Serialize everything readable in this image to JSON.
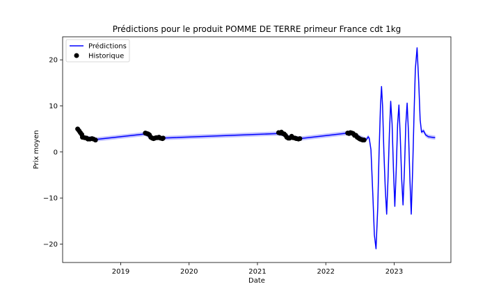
{
  "chart_data": {
    "type": "line",
    "title": "Prédictions pour le produit POMME DE TERRE primeur France cdt 1kg",
    "xlabel": "Date",
    "ylabel": "Prix moyen",
    "xlim": [
      2018.15,
      2023.83
    ],
    "ylim": [
      -24,
      25
    ],
    "x_ticks": [
      2019,
      2020,
      2021,
      2022,
      2023
    ],
    "x_tick_labels": [
      "2019",
      "2020",
      "2021",
      "2022",
      "2023"
    ],
    "y_ticks": [
      -20,
      -10,
      0,
      10,
      20
    ],
    "y_tick_labels": [
      "−20",
      "−10",
      "0",
      "10",
      "20"
    ],
    "grid": false,
    "legend": {
      "placement": "top-left",
      "entries": [
        {
          "label": "Prédictions",
          "kind": "line",
          "color": "#0000ff"
        },
        {
          "label": "Historique",
          "kind": "point",
          "color": "#000000"
        }
      ]
    },
    "colors": {
      "prediction": "#0000ff",
      "band": "#8f8fff",
      "history": "#000000"
    },
    "band_half_width": 0.45,
    "series": [
      {
        "name": "Prédictions",
        "points": [
          [
            2018.37,
            4.8
          ],
          [
            2018.4,
            4.6
          ],
          [
            2018.43,
            3.9
          ],
          [
            2018.46,
            3.2
          ],
          [
            2018.52,
            3.0
          ],
          [
            2018.58,
            2.9
          ],
          [
            2018.63,
            2.7
          ],
          [
            2019.36,
            3.9
          ],
          [
            2019.42,
            3.3
          ],
          [
            2019.48,
            3.0
          ],
          [
            2019.55,
            3.1
          ],
          [
            2019.6,
            3.0
          ],
          [
            2021.31,
            4.0
          ],
          [
            2021.38,
            3.8
          ],
          [
            2021.44,
            3.3
          ],
          [
            2021.5,
            3.1
          ],
          [
            2021.57,
            3.0
          ],
          [
            2021.62,
            2.9
          ],
          [
            2022.32,
            4.1
          ],
          [
            2022.38,
            4.0
          ],
          [
            2022.44,
            3.6
          ],
          [
            2022.5,
            3.2
          ],
          [
            2022.55,
            2.9
          ],
          [
            2022.58,
            2.7
          ],
          [
            2022.6,
            2.8
          ],
          [
            2022.62,
            3.3
          ],
          [
            2022.635,
            3.0
          ],
          [
            2022.66,
            0.5
          ],
          [
            2022.69,
            -10.0
          ],
          [
            2022.71,
            -18.0
          ],
          [
            2022.735,
            -21.0
          ],
          [
            2022.76,
            -12.0
          ],
          [
            2022.78,
            0.0
          ],
          [
            2022.8,
            10.0
          ],
          [
            2022.815,
            14.2
          ],
          [
            2022.83,
            10.0
          ],
          [
            2022.85,
            0.0
          ],
          [
            2022.87,
            -8.0
          ],
          [
            2022.89,
            -13.5
          ],
          [
            2022.91,
            -6.0
          ],
          [
            2022.93,
            4.0
          ],
          [
            2022.95,
            11.0
          ],
          [
            2022.97,
            6.0
          ],
          [
            2022.99,
            -4.0
          ],
          [
            2023.01,
            -11.8
          ],
          [
            2023.03,
            -4.0
          ],
          [
            2023.05,
            6.0
          ],
          [
            2023.07,
            10.2
          ],
          [
            2023.09,
            3.0
          ],
          [
            2023.11,
            -6.0
          ],
          [
            2023.13,
            -11.5
          ],
          [
            2023.15,
            -4.0
          ],
          [
            2023.17,
            6.0
          ],
          [
            2023.19,
            10.6
          ],
          [
            2023.21,
            4.0
          ],
          [
            2023.23,
            -6.0
          ],
          [
            2023.25,
            -13.5
          ],
          [
            2023.27,
            -4.0
          ],
          [
            2023.29,
            8.0
          ],
          [
            2023.31,
            18.0
          ],
          [
            2023.335,
            22.6
          ],
          [
            2023.36,
            15.0
          ],
          [
            2023.38,
            7.0
          ],
          [
            2023.4,
            4.3
          ],
          [
            2023.43,
            4.6
          ],
          [
            2023.46,
            3.7
          ],
          [
            2023.5,
            3.3
          ],
          [
            2023.55,
            3.2
          ],
          [
            2023.6,
            3.1
          ]
        ]
      },
      {
        "name": "Historique",
        "points": [
          [
            2018.37,
            5.0
          ],
          [
            2018.39,
            4.6
          ],
          [
            2018.41,
            4.2
          ],
          [
            2018.43,
            3.8
          ],
          [
            2018.44,
            3.2
          ],
          [
            2018.47,
            3.1
          ],
          [
            2018.5,
            3.0
          ],
          [
            2018.52,
            2.8
          ],
          [
            2018.55,
            2.8
          ],
          [
            2018.58,
            2.9
          ],
          [
            2018.6,
            2.8
          ],
          [
            2018.63,
            2.6
          ],
          [
            2019.36,
            4.1
          ],
          [
            2019.38,
            4.0
          ],
          [
            2019.4,
            3.9
          ],
          [
            2019.42,
            3.7
          ],
          [
            2019.44,
            3.2
          ],
          [
            2019.46,
            3.0
          ],
          [
            2019.48,
            2.9
          ],
          [
            2019.5,
            3.0
          ],
          [
            2019.52,
            3.1
          ],
          [
            2019.54,
            3.1
          ],
          [
            2019.56,
            3.2
          ],
          [
            2019.58,
            3.0
          ],
          [
            2019.61,
            2.9
          ],
          [
            2019.62,
            3.0
          ],
          [
            2021.31,
            4.2
          ],
          [
            2021.33,
            4.1
          ],
          [
            2021.35,
            4.3
          ],
          [
            2021.37,
            4.0
          ],
          [
            2021.39,
            3.9
          ],
          [
            2021.41,
            3.6
          ],
          [
            2021.43,
            3.2
          ],
          [
            2021.45,
            3.0
          ],
          [
            2021.47,
            3.0
          ],
          [
            2021.5,
            3.4
          ],
          [
            2021.52,
            3.1
          ],
          [
            2021.55,
            3.0
          ],
          [
            2021.57,
            2.9
          ],
          [
            2021.6,
            2.8
          ],
          [
            2021.62,
            2.9
          ],
          [
            2022.32,
            4.1
          ],
          [
            2022.34,
            4.0
          ],
          [
            2022.36,
            4.2
          ],
          [
            2022.38,
            4.1
          ],
          [
            2022.4,
            4.0
          ],
          [
            2022.42,
            3.6
          ],
          [
            2022.44,
            3.6
          ],
          [
            2022.46,
            3.2
          ],
          [
            2022.48,
            3.0
          ],
          [
            2022.5,
            2.8
          ],
          [
            2022.52,
            2.7
          ],
          [
            2022.54,
            2.6
          ],
          [
            2022.56,
            2.6
          ]
        ]
      }
    ]
  }
}
